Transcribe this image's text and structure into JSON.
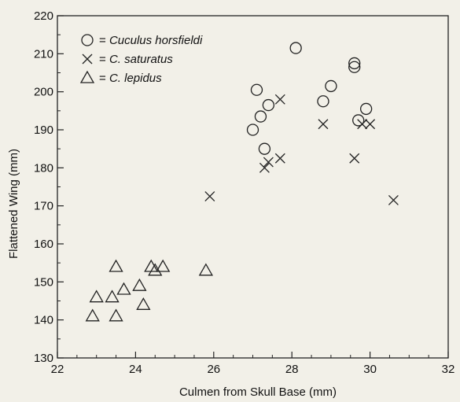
{
  "chart_data": {
    "type": "scatter",
    "xlabel": "Culmen from Skull Base (mm)",
    "ylabel": "Flattened Wing (mm)",
    "xlim": [
      22,
      32
    ],
    "ylim": [
      130,
      220
    ],
    "xticks": [
      22,
      24,
      26,
      28,
      30,
      32
    ],
    "yticks": [
      130,
      140,
      150,
      160,
      170,
      180,
      190,
      200,
      210,
      220
    ],
    "x_minor_step": 0.5,
    "y_minor_step": 5,
    "grid": false,
    "legend_position": "top-left",
    "legend": [
      {
        "marker": "circle",
        "prefix": "= ",
        "label": "Cuculus horsfieldi"
      },
      {
        "marker": "x",
        "prefix": "= ",
        "label": "C. saturatus"
      },
      {
        "marker": "triangle",
        "prefix": "= ",
        "label": "C. lepidus"
      }
    ],
    "series": [
      {
        "name": "Cuculus horsfieldi",
        "marker": "circle",
        "points": [
          [
            27.0,
            190
          ],
          [
            27.1,
            200.5
          ],
          [
            27.2,
            193.5
          ],
          [
            27.3,
            185
          ],
          [
            27.4,
            196.5
          ],
          [
            28.1,
            211.5
          ],
          [
            28.8,
            197.5
          ],
          [
            29.0,
            201.5
          ],
          [
            29.6,
            207.5
          ],
          [
            29.6,
            206.5
          ],
          [
            29.7,
            192.5
          ],
          [
            29.9,
            195.5
          ]
        ]
      },
      {
        "name": "C. saturatus",
        "marker": "x",
        "points": [
          [
            25.9,
            172.5
          ],
          [
            27.3,
            180
          ],
          [
            27.4,
            181.5
          ],
          [
            27.7,
            182.5
          ],
          [
            27.7,
            198
          ],
          [
            28.8,
            191.5
          ],
          [
            29.6,
            182.5
          ],
          [
            29.8,
            191.5
          ],
          [
            30.0,
            191.5
          ],
          [
            30.6,
            171.5
          ]
        ]
      },
      {
        "name": "C. lepidus",
        "marker": "triangle",
        "points": [
          [
            22.9,
            141
          ],
          [
            23.0,
            146
          ],
          [
            23.4,
            146
          ],
          [
            23.5,
            154
          ],
          [
            23.5,
            141
          ],
          [
            23.7,
            148
          ],
          [
            24.1,
            149
          ],
          [
            24.2,
            144
          ],
          [
            24.4,
            154
          ],
          [
            24.5,
            153
          ],
          [
            24.7,
            154
          ],
          [
            25.8,
            153
          ]
        ]
      }
    ]
  }
}
